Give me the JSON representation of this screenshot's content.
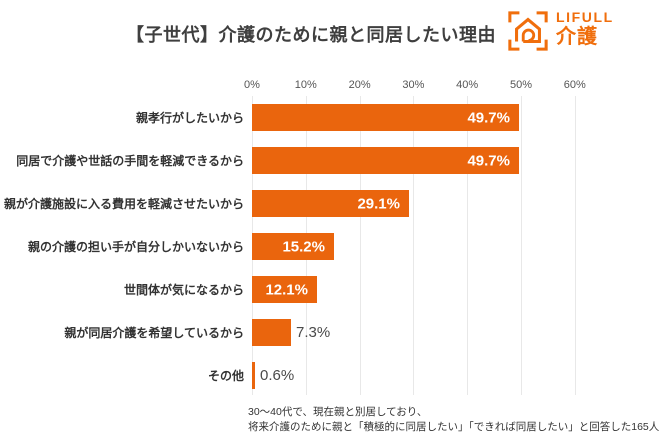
{
  "header": {
    "title": "【子世代】介護のために親と同居したい理由",
    "logo": {
      "brand": "LIFULL",
      "service": "介護",
      "icon": "house-spiral-with-corner-brackets",
      "color": "#F06E0C"
    }
  },
  "chart_data": {
    "type": "bar",
    "orientation": "horizontal",
    "title": "【子世代】介護のために親と同居したい理由",
    "categories": [
      "親孝行がしたいから",
      "同居で介護や世話の手間を軽減できるから",
      "親が介護施設に入る費用を軽減させたいから",
      "親の介護の担い手が自分しかいないから",
      "世間体が気になるから",
      "親が同居介護を希望しているから",
      "その他"
    ],
    "values": [
      49.7,
      49.7,
      29.1,
      15.2,
      12.1,
      7.3,
      0.6
    ],
    "value_labels": [
      "49.7%",
      "49.7%",
      "29.1%",
      "15.2%",
      "12.1%",
      "7.3%",
      "0.6%"
    ],
    "x_ticks": [
      "0%",
      "10%",
      "20%",
      "30%",
      "40%",
      "50%",
      "60%"
    ],
    "xlim": [
      0,
      60
    ],
    "grid": true,
    "legend": false,
    "bar_color": "#EA650D"
  },
  "footnote": {
    "line1": "30〜40代で、現在親と別居しており、",
    "line2": "将来介護のために親と「積極的に同居したい」「できれば同居したい」と回答した165人"
  }
}
